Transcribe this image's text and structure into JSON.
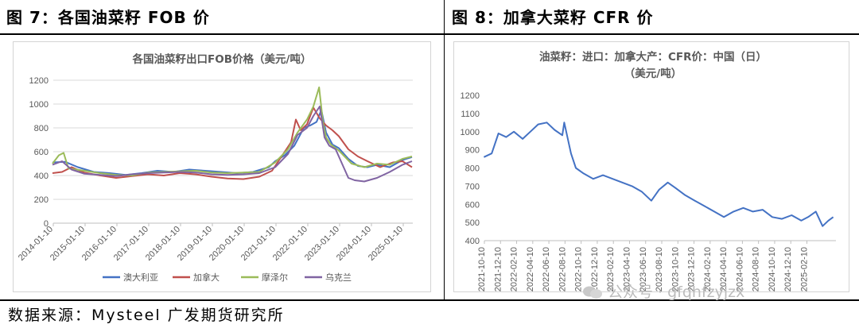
{
  "panels": {
    "left_title": "图 7：各国油菜籽 FOB 价",
    "right_title": "图 8：加拿大菜籽 CFR 价"
  },
  "source_text": "数据来源：Mysteel 广发期货研究所",
  "watermark_text": "公众号 · gfqhfzyjzx",
  "chart_data": [
    {
      "type": "line",
      "title": "各国油菜籽出口FOB价格（美元/吨）",
      "ylim": [
        0,
        1200
      ],
      "yticks": [
        0,
        200,
        400,
        600,
        800,
        1000,
        1200
      ],
      "xticks": [
        "2014-01-10",
        "2015-01-10",
        "2016-01-10",
        "2017-01-10",
        "2018-01-10",
        "2019-01-10",
        "2020-01-10",
        "2021-01-10",
        "2022-01-10",
        "2023-01-10",
        "2024-01-10",
        "2025-01-10"
      ],
      "grid": true,
      "legend_position": "bottom",
      "series": [
        {
          "name": "澳大利亚",
          "color": "#4472C4",
          "points": [
            [
              2014.0,
              510
            ],
            [
              2014.4,
              515
            ],
            [
              2014.8,
              470
            ],
            [
              2015.3,
              430
            ],
            [
              2015.8,
              420
            ],
            [
              2016.3,
              405
            ],
            [
              2016.8,
              420
            ],
            [
              2017.3,
              440
            ],
            [
              2017.8,
              430
            ],
            [
              2018.3,
              450
            ],
            [
              2018.8,
              440
            ],
            [
              2019.3,
              430
            ],
            [
              2019.8,
              420
            ],
            [
              2020.3,
              430
            ],
            [
              2020.8,
              470
            ],
            [
              2021.0,
              520
            ],
            [
              2021.3,
              570
            ],
            [
              2021.6,
              650
            ],
            [
              2021.9,
              800
            ],
            [
              2022.1,
              820
            ],
            [
              2022.3,
              850
            ],
            [
              2022.45,
              950
            ],
            [
              2022.6,
              760
            ],
            [
              2022.8,
              660
            ],
            [
              2023.0,
              630
            ],
            [
              2023.3,
              540
            ],
            [
              2023.6,
              480
            ],
            [
              2023.9,
              470
            ],
            [
              2024.2,
              490
            ],
            [
              2024.6,
              470
            ],
            [
              2025.0,
              530
            ],
            [
              2025.3,
              555
            ]
          ]
        },
        {
          "name": "加拿大",
          "color": "#C0504D",
          "points": [
            [
              2014.0,
              420
            ],
            [
              2014.3,
              430
            ],
            [
              2014.6,
              470
            ],
            [
              2015.0,
              425
            ],
            [
              2015.5,
              400
            ],
            [
              2016.0,
              380
            ],
            [
              2016.5,
              395
            ],
            [
              2017.0,
              410
            ],
            [
              2017.5,
              400
            ],
            [
              2018.0,
              420
            ],
            [
              2018.5,
              410
            ],
            [
              2019.0,
              390
            ],
            [
              2019.5,
              375
            ],
            [
              2020.0,
              370
            ],
            [
              2020.5,
              390
            ],
            [
              2020.9,
              440
            ],
            [
              2021.3,
              600
            ],
            [
              2021.5,
              680
            ],
            [
              2021.65,
              870
            ],
            [
              2021.8,
              780
            ],
            [
              2022.0,
              830
            ],
            [
              2022.2,
              970
            ],
            [
              2022.4,
              880
            ],
            [
              2022.6,
              820
            ],
            [
              2022.8,
              780
            ],
            [
              2023.0,
              730
            ],
            [
              2023.3,
              620
            ],
            [
              2023.6,
              560
            ],
            [
              2023.9,
              520
            ],
            [
              2024.3,
              470
            ],
            [
              2024.7,
              510
            ],
            [
              2025.0,
              520
            ],
            [
              2025.3,
              470
            ]
          ]
        },
        {
          "name": "摩泽尔",
          "color": "#9BBB59",
          "points": [
            [
              2014.0,
              500
            ],
            [
              2014.2,
              570
            ],
            [
              2014.35,
              590
            ],
            [
              2014.5,
              460
            ],
            [
              2015.0,
              440
            ],
            [
              2015.5,
              420
            ],
            [
              2016.0,
              405
            ],
            [
              2016.5,
              400
            ],
            [
              2017.0,
              425
            ],
            [
              2017.5,
              430
            ],
            [
              2018.0,
              435
            ],
            [
              2018.5,
              440
            ],
            [
              2019.0,
              425
            ],
            [
              2019.5,
              420
            ],
            [
              2020.0,
              425
            ],
            [
              2020.5,
              430
            ],
            [
              2021.0,
              510
            ],
            [
              2021.4,
              620
            ],
            [
              2021.7,
              760
            ],
            [
              2022.0,
              870
            ],
            [
              2022.2,
              980
            ],
            [
              2022.38,
              1140
            ],
            [
              2022.5,
              850
            ],
            [
              2022.6,
              720
            ],
            [
              2022.75,
              660
            ],
            [
              2023.0,
              610
            ],
            [
              2023.4,
              500
            ],
            [
              2023.8,
              470
            ],
            [
              2024.2,
              500
            ],
            [
              2024.6,
              490
            ],
            [
              2025.0,
              540
            ],
            [
              2025.3,
              560
            ]
          ]
        },
        {
          "name": "乌克兰",
          "color": "#8064A2",
          "points": [
            [
              2014.0,
              490
            ],
            [
              2014.3,
              520
            ],
            [
              2014.6,
              450
            ],
            [
              2015.0,
              415
            ],
            [
              2015.5,
              405
            ],
            [
              2016.0,
              395
            ],
            [
              2016.5,
              410
            ],
            [
              2017.0,
              420
            ],
            [
              2017.5,
              425
            ],
            [
              2018.0,
              430
            ],
            [
              2018.5,
              425
            ],
            [
              2019.0,
              410
            ],
            [
              2019.5,
              405
            ],
            [
              2020.0,
              410
            ],
            [
              2020.5,
              420
            ],
            [
              2021.0,
              470
            ],
            [
              2021.4,
              580
            ],
            [
              2021.7,
              740
            ],
            [
              2022.0,
              800
            ],
            [
              2022.2,
              900
            ],
            [
              2022.4,
              980
            ],
            [
              2022.55,
              720
            ],
            [
              2022.7,
              650
            ],
            [
              2022.9,
              620
            ],
            [
              2023.1,
              500
            ],
            [
              2023.3,
              380
            ],
            [
              2023.5,
              360
            ],
            [
              2023.8,
              350
            ],
            [
              2024.2,
              380
            ],
            [
              2024.6,
              430
            ],
            [
              2025.0,
              490
            ],
            [
              2025.3,
              520
            ]
          ]
        }
      ]
    },
    {
      "type": "line",
      "title_lines": [
        "油菜籽：进口：加拿大产：CFR价：中国（日）",
        "（美元/吨）"
      ],
      "ylim": [
        400,
        1200
      ],
      "yticks": [
        400,
        500,
        600,
        700,
        800,
        900,
        1000,
        1100,
        1200
      ],
      "xticks": [
        "2021-10-10",
        "2021-12-10",
        "2022-02-10",
        "2022-04-10",
        "2022-06-10",
        "2022-08-10",
        "2022-10-10",
        "2022-12-10",
        "2023-02-10",
        "2023-04-10",
        "2023-06-10",
        "2023-08-10",
        "2023-10-10",
        "2023-12-10",
        "2024-02-10",
        "2024-04-10",
        "2024-06-10",
        "2024-08-10",
        "2024-10-10",
        "2024-12-10",
        "2025-02-10"
      ],
      "grid": false,
      "series": [
        {
          "name": "CFR价",
          "color": "#4472C4",
          "points": [
            [
              2021.77,
              860
            ],
            [
              2021.85,
              880
            ],
            [
              2021.92,
              990
            ],
            [
              2022.0,
              970
            ],
            [
              2022.08,
              1000
            ],
            [
              2022.17,
              960
            ],
            [
              2022.25,
              1000
            ],
            [
              2022.33,
              1040
            ],
            [
              2022.42,
              1050
            ],
            [
              2022.5,
              1010
            ],
            [
              2022.58,
              980
            ],
            [
              2022.6,
              1050
            ],
            [
              2022.67,
              880
            ],
            [
              2022.72,
              800
            ],
            [
              2022.8,
              770
            ],
            [
              2022.9,
              740
            ],
            [
              2023.0,
              760
            ],
            [
              2023.1,
              740
            ],
            [
              2023.2,
              720
            ],
            [
              2023.3,
              700
            ],
            [
              2023.4,
              670
            ],
            [
              2023.5,
              620
            ],
            [
              2023.58,
              680
            ],
            [
              2023.67,
              720
            ],
            [
              2023.75,
              690
            ],
            [
              2023.85,
              650
            ],
            [
              2023.95,
              620
            ],
            [
              2024.05,
              590
            ],
            [
              2024.15,
              560
            ],
            [
              2024.25,
              530
            ],
            [
              2024.35,
              560
            ],
            [
              2024.45,
              580
            ],
            [
              2024.55,
              560
            ],
            [
              2024.65,
              570
            ],
            [
              2024.75,
              530
            ],
            [
              2024.85,
              520
            ],
            [
              2024.95,
              540
            ],
            [
              2025.05,
              510
            ],
            [
              2025.12,
              530
            ],
            [
              2025.2,
              560
            ],
            [
              2025.27,
              480
            ],
            [
              2025.33,
              510
            ],
            [
              2025.38,
              530
            ]
          ]
        }
      ]
    }
  ]
}
